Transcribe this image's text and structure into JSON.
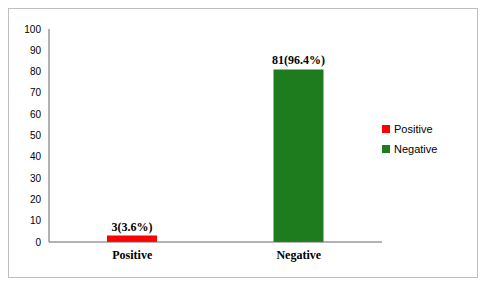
{
  "chart_data": {
    "type": "bar",
    "categories": [
      "Positive",
      "Negative"
    ],
    "values": [
      3,
      81
    ],
    "value_labels": [
      "3(3.6%)",
      "81(96.4%)"
    ],
    "colors": [
      "#ff0000",
      "#1e7b1e"
    ],
    "ylim": [
      0,
      100
    ],
    "yticks": [
      0,
      10,
      20,
      30,
      40,
      50,
      60,
      70,
      80,
      90,
      100
    ],
    "data_labels": true,
    "legend": "right",
    "grid": false
  }
}
